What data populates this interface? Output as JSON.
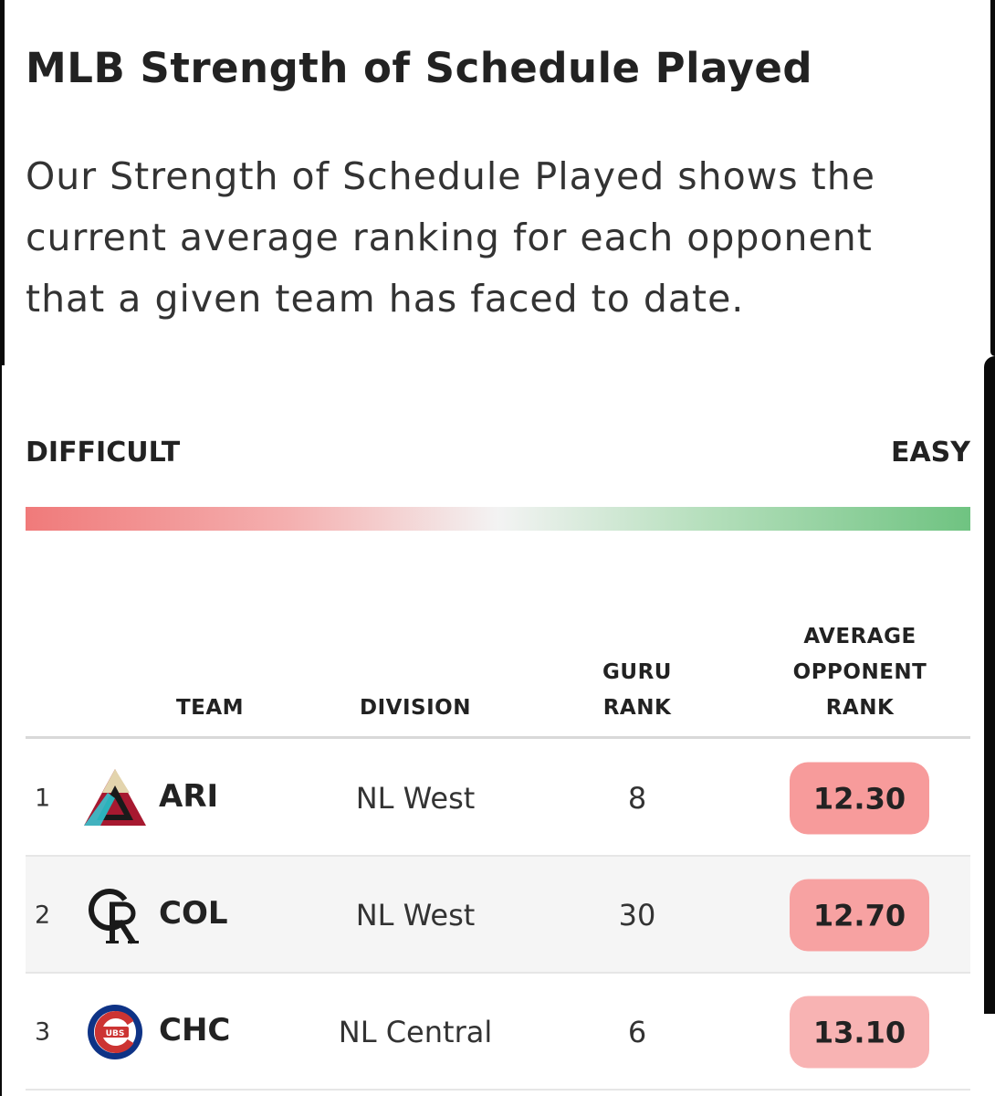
{
  "header": {
    "title": "MLB Strength of Schedule Played",
    "description": "Our Strength of Schedule Played shows the current average ranking for each opponent that a given team has faced to date."
  },
  "scale": {
    "left_label": "DIFFICULT",
    "right_label": "EASY",
    "colors": {
      "difficult": "#f07a7a",
      "neutral": "#f3f3f3",
      "easy": "#6fc381"
    }
  },
  "table": {
    "headers": {
      "team": "TEAM",
      "division": "DIVISION",
      "guru_rank": [
        "GURU",
        "RANK"
      ],
      "avg_opp_rank": [
        "AVERAGE",
        "OPPONENT",
        "RANK"
      ]
    },
    "rows": [
      {
        "rank": "1",
        "team": "ARI",
        "logo": "diamondbacks-logo-icon",
        "division": "NL West",
        "guru_rank": "8",
        "avg_opp_rank": "12.30",
        "pill_color": "#f79b9b"
      },
      {
        "rank": "2",
        "team": "COL",
        "logo": "rockies-logo-icon",
        "division": "NL West",
        "guru_rank": "30",
        "avg_opp_rank": "12.70",
        "pill_color": "#f7a2a2"
      },
      {
        "rank": "3",
        "team": "CHC",
        "logo": "cubs-logo-icon",
        "division": "NL Central",
        "guru_rank": "6",
        "avg_opp_rank": "13.10",
        "pill_color": "#f8b3b3"
      }
    ]
  }
}
